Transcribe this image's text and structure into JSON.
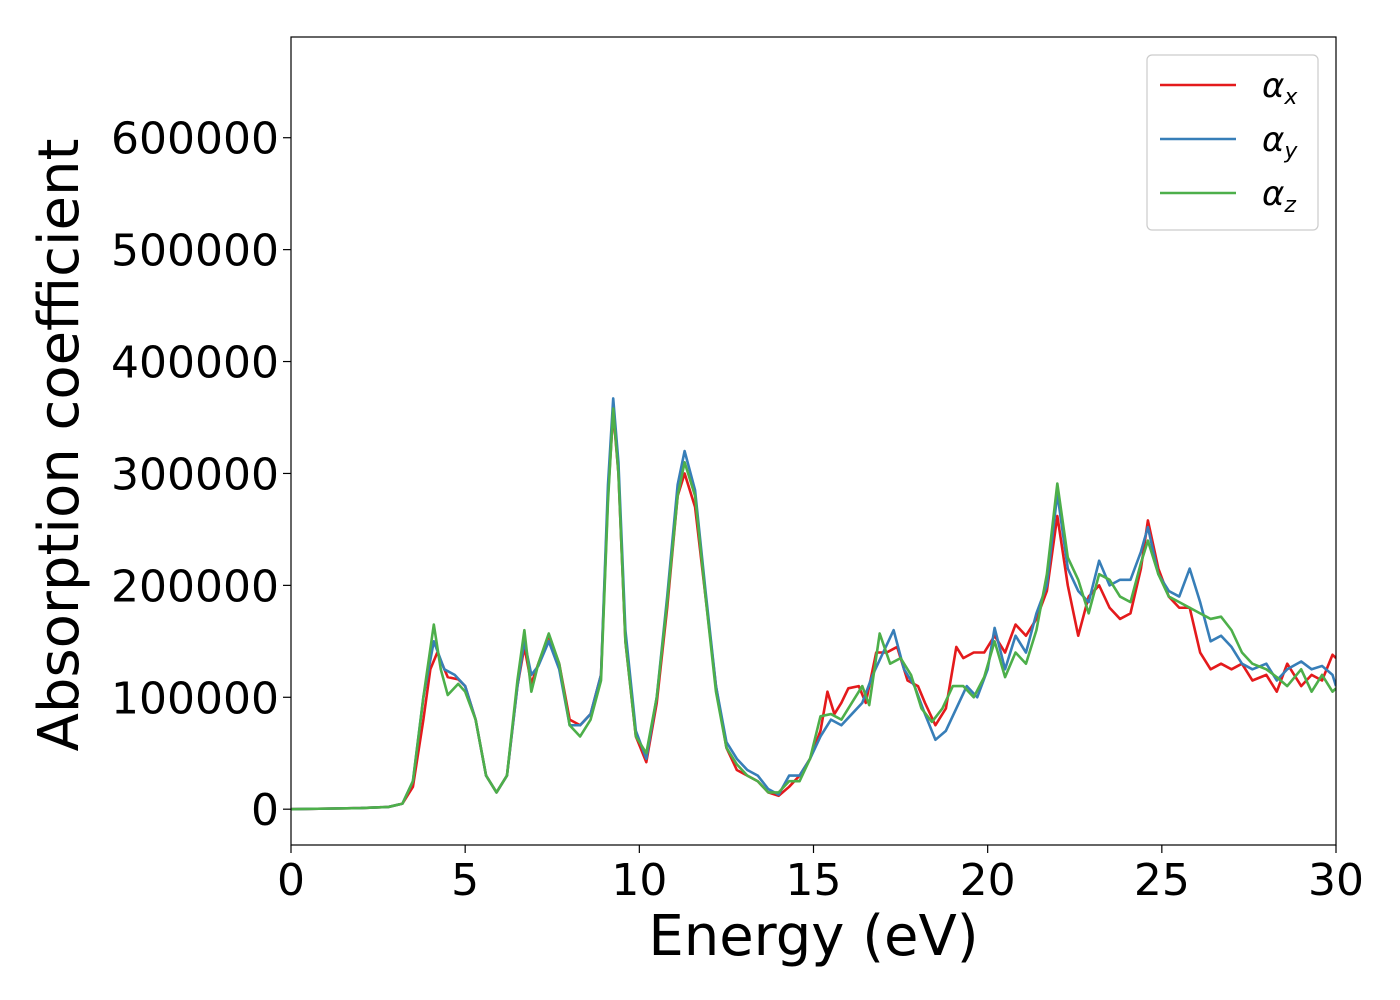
{
  "chart_data": {
    "type": "line",
    "title": "",
    "xlabel": "Energy (eV)",
    "ylabel": "Absorption coefficient",
    "xlim": [
      0,
      30
    ],
    "ylim": [
      -32000,
      690000
    ],
    "xticks": [
      0,
      5,
      10,
      15,
      20,
      25,
      30
    ],
    "yticks": [
      0,
      100000,
      200000,
      300000,
      400000,
      500000,
      600000
    ],
    "grid": false,
    "legend_position": "top-right",
    "series": [
      {
        "name": "αx",
        "legend_base": "α",
        "legend_sub": "x",
        "color": "#e41a1c",
        "points": [
          [
            0,
            0
          ],
          [
            1,
            500
          ],
          [
            2,
            1000
          ],
          [
            2.8,
            2000
          ],
          [
            3.2,
            5000
          ],
          [
            3.5,
            20000
          ],
          [
            3.8,
            80000
          ],
          [
            4.0,
            125000
          ],
          [
            4.2,
            140000
          ],
          [
            4.5,
            118000
          ],
          [
            4.8,
            116000
          ],
          [
            5.0,
            110000
          ],
          [
            5.3,
            80000
          ],
          [
            5.6,
            30000
          ],
          [
            5.9,
            15000
          ],
          [
            6.2,
            30000
          ],
          [
            6.5,
            110000
          ],
          [
            6.7,
            145000
          ],
          [
            6.9,
            112000
          ],
          [
            7.1,
            130000
          ],
          [
            7.4,
            155000
          ],
          [
            7.7,
            130000
          ],
          [
            8.0,
            80000
          ],
          [
            8.3,
            75000
          ],
          [
            8.6,
            85000
          ],
          [
            8.9,
            120000
          ],
          [
            9.1,
            280000
          ],
          [
            9.25,
            355000
          ],
          [
            9.4,
            300000
          ],
          [
            9.6,
            150000
          ],
          [
            9.9,
            65000
          ],
          [
            10.2,
            42000
          ],
          [
            10.5,
            95000
          ],
          [
            10.8,
            180000
          ],
          [
            11.1,
            280000
          ],
          [
            11.3,
            300000
          ],
          [
            11.6,
            270000
          ],
          [
            11.9,
            190000
          ],
          [
            12.2,
            110000
          ],
          [
            12.5,
            55000
          ],
          [
            12.8,
            35000
          ],
          [
            13.1,
            30000
          ],
          [
            13.4,
            25000
          ],
          [
            13.7,
            15000
          ],
          [
            14.0,
            12000
          ],
          [
            14.3,
            20000
          ],
          [
            14.6,
            30000
          ],
          [
            14.9,
            45000
          ],
          [
            15.2,
            70000
          ],
          [
            15.4,
            105000
          ],
          [
            15.6,
            85000
          ],
          [
            15.8,
            95000
          ],
          [
            16.0,
            108000
          ],
          [
            16.3,
            110000
          ],
          [
            16.5,
            95000
          ],
          [
            16.8,
            140000
          ],
          [
            17.1,
            140000
          ],
          [
            17.4,
            145000
          ],
          [
            17.7,
            115000
          ],
          [
            18.0,
            110000
          ],
          [
            18.2,
            95000
          ],
          [
            18.5,
            75000
          ],
          [
            18.8,
            90000
          ],
          [
            19.1,
            145000
          ],
          [
            19.3,
            135000
          ],
          [
            19.6,
            140000
          ],
          [
            19.9,
            140000
          ],
          [
            20.2,
            155000
          ],
          [
            20.5,
            140000
          ],
          [
            20.8,
            165000
          ],
          [
            21.1,
            155000
          ],
          [
            21.4,
            170000
          ],
          [
            21.7,
            195000
          ],
          [
            22.0,
            262000
          ],
          [
            22.3,
            200000
          ],
          [
            22.6,
            155000
          ],
          [
            22.9,
            190000
          ],
          [
            23.2,
            200000
          ],
          [
            23.5,
            180000
          ],
          [
            23.8,
            170000
          ],
          [
            24.1,
            175000
          ],
          [
            24.4,
            215000
          ],
          [
            24.6,
            258000
          ],
          [
            24.9,
            215000
          ],
          [
            25.2,
            190000
          ],
          [
            25.5,
            180000
          ],
          [
            25.8,
            180000
          ],
          [
            26.1,
            140000
          ],
          [
            26.4,
            125000
          ],
          [
            26.7,
            130000
          ],
          [
            27.0,
            125000
          ],
          [
            27.3,
            130000
          ],
          [
            27.6,
            115000
          ],
          [
            28.0,
            120000
          ],
          [
            28.3,
            105000
          ],
          [
            28.6,
            130000
          ],
          [
            29.0,
            110000
          ],
          [
            29.3,
            120000
          ],
          [
            29.6,
            115000
          ],
          [
            29.9,
            138000
          ],
          [
            30.0,
            135000
          ]
        ]
      },
      {
        "name": "αy",
        "legend_base": "α",
        "legend_sub": "y",
        "color": "#377eb8",
        "points": [
          [
            0,
            0
          ],
          [
            1,
            500
          ],
          [
            2,
            1000
          ],
          [
            2.8,
            2000
          ],
          [
            3.2,
            5000
          ],
          [
            3.5,
            25000
          ],
          [
            3.8,
            100000
          ],
          [
            4.1,
            150000
          ],
          [
            4.4,
            125000
          ],
          [
            4.7,
            120000
          ],
          [
            5.0,
            110000
          ],
          [
            5.3,
            80000
          ],
          [
            5.6,
            30000
          ],
          [
            5.9,
            15000
          ],
          [
            6.2,
            30000
          ],
          [
            6.5,
            110000
          ],
          [
            6.7,
            150000
          ],
          [
            6.9,
            120000
          ],
          [
            7.1,
            128000
          ],
          [
            7.4,
            150000
          ],
          [
            7.7,
            125000
          ],
          [
            8.0,
            75000
          ],
          [
            8.3,
            75000
          ],
          [
            8.6,
            85000
          ],
          [
            8.9,
            120000
          ],
          [
            9.1,
            290000
          ],
          [
            9.25,
            367000
          ],
          [
            9.4,
            310000
          ],
          [
            9.6,
            160000
          ],
          [
            9.9,
            70000
          ],
          [
            10.2,
            45000
          ],
          [
            10.5,
            100000
          ],
          [
            10.8,
            190000
          ],
          [
            11.1,
            290000
          ],
          [
            11.3,
            320000
          ],
          [
            11.6,
            285000
          ],
          [
            11.9,
            195000
          ],
          [
            12.2,
            110000
          ],
          [
            12.5,
            60000
          ],
          [
            12.8,
            45000
          ],
          [
            13.1,
            35000
          ],
          [
            13.4,
            30000
          ],
          [
            13.7,
            18000
          ],
          [
            14.0,
            13000
          ],
          [
            14.3,
            30000
          ],
          [
            14.6,
            30000
          ],
          [
            14.9,
            45000
          ],
          [
            15.2,
            65000
          ],
          [
            15.5,
            80000
          ],
          [
            15.8,
            75000
          ],
          [
            16.1,
            85000
          ],
          [
            16.4,
            95000
          ],
          [
            16.7,
            120000
          ],
          [
            17.0,
            140000
          ],
          [
            17.3,
            160000
          ],
          [
            17.6,
            125000
          ],
          [
            17.9,
            110000
          ],
          [
            18.2,
            85000
          ],
          [
            18.5,
            62000
          ],
          [
            18.8,
            70000
          ],
          [
            19.1,
            90000
          ],
          [
            19.4,
            110000
          ],
          [
            19.7,
            100000
          ],
          [
            20.0,
            125000
          ],
          [
            20.2,
            162000
          ],
          [
            20.5,
            125000
          ],
          [
            20.8,
            155000
          ],
          [
            21.1,
            140000
          ],
          [
            21.4,
            175000
          ],
          [
            21.7,
            200000
          ],
          [
            22.0,
            282000
          ],
          [
            22.3,
            215000
          ],
          [
            22.6,
            195000
          ],
          [
            22.9,
            185000
          ],
          [
            23.2,
            222000
          ],
          [
            23.5,
            200000
          ],
          [
            23.8,
            205000
          ],
          [
            24.1,
            205000
          ],
          [
            24.4,
            230000
          ],
          [
            24.6,
            252000
          ],
          [
            24.9,
            210000
          ],
          [
            25.2,
            195000
          ],
          [
            25.5,
            190000
          ],
          [
            25.8,
            215000
          ],
          [
            26.1,
            185000
          ],
          [
            26.4,
            150000
          ],
          [
            26.7,
            155000
          ],
          [
            27.0,
            145000
          ],
          [
            27.3,
            130000
          ],
          [
            27.6,
            125000
          ],
          [
            28.0,
            130000
          ],
          [
            28.3,
            115000
          ],
          [
            28.6,
            125000
          ],
          [
            29.0,
            132000
          ],
          [
            29.3,
            125000
          ],
          [
            29.6,
            128000
          ],
          [
            29.9,
            120000
          ],
          [
            30.0,
            110000
          ]
        ]
      },
      {
        "name": "αz",
        "legend_base": "α",
        "legend_sub": "z",
        "color": "#4daf4a",
        "points": [
          [
            0,
            0
          ],
          [
            1,
            500
          ],
          [
            2,
            1000
          ],
          [
            2.8,
            2000
          ],
          [
            3.2,
            5000
          ],
          [
            3.5,
            25000
          ],
          [
            3.8,
            100000
          ],
          [
            4.1,
            165000
          ],
          [
            4.3,
            125000
          ],
          [
            4.5,
            102000
          ],
          [
            4.8,
            112000
          ],
          [
            5.0,
            105000
          ],
          [
            5.3,
            80000
          ],
          [
            5.6,
            30000
          ],
          [
            5.9,
            15000
          ],
          [
            6.2,
            30000
          ],
          [
            6.5,
            115000
          ],
          [
            6.7,
            160000
          ],
          [
            6.9,
            105000
          ],
          [
            7.1,
            130000
          ],
          [
            7.4,
            157000
          ],
          [
            7.7,
            130000
          ],
          [
            8.0,
            75000
          ],
          [
            8.3,
            65000
          ],
          [
            8.6,
            80000
          ],
          [
            8.9,
            115000
          ],
          [
            9.1,
            275000
          ],
          [
            9.25,
            358000
          ],
          [
            9.4,
            300000
          ],
          [
            9.6,
            150000
          ],
          [
            9.9,
            65000
          ],
          [
            10.2,
            50000
          ],
          [
            10.5,
            100000
          ],
          [
            10.8,
            185000
          ],
          [
            11.1,
            280000
          ],
          [
            11.3,
            310000
          ],
          [
            11.6,
            280000
          ],
          [
            11.9,
            190000
          ],
          [
            12.2,
            105000
          ],
          [
            12.5,
            55000
          ],
          [
            12.8,
            40000
          ],
          [
            13.1,
            30000
          ],
          [
            13.4,
            25000
          ],
          [
            13.7,
            15000
          ],
          [
            14.0,
            15000
          ],
          [
            14.3,
            25000
          ],
          [
            14.6,
            25000
          ],
          [
            14.9,
            45000
          ],
          [
            15.2,
            83000
          ],
          [
            15.5,
            85000
          ],
          [
            15.8,
            80000
          ],
          [
            16.1,
            95000
          ],
          [
            16.4,
            110000
          ],
          [
            16.6,
            93000
          ],
          [
            16.9,
            157000
          ],
          [
            17.2,
            130000
          ],
          [
            17.5,
            135000
          ],
          [
            17.8,
            120000
          ],
          [
            18.1,
            90000
          ],
          [
            18.4,
            78000
          ],
          [
            18.7,
            90000
          ],
          [
            19.0,
            110000
          ],
          [
            19.3,
            110000
          ],
          [
            19.6,
            100000
          ],
          [
            19.9,
            118000
          ],
          [
            20.2,
            150000
          ],
          [
            20.5,
            118000
          ],
          [
            20.8,
            140000
          ],
          [
            21.1,
            130000
          ],
          [
            21.4,
            160000
          ],
          [
            21.7,
            210000
          ],
          [
            22.0,
            291000
          ],
          [
            22.3,
            225000
          ],
          [
            22.6,
            205000
          ],
          [
            22.9,
            175000
          ],
          [
            23.2,
            210000
          ],
          [
            23.5,
            205000
          ],
          [
            23.8,
            190000
          ],
          [
            24.1,
            185000
          ],
          [
            24.4,
            220000
          ],
          [
            24.6,
            240000
          ],
          [
            24.9,
            210000
          ],
          [
            25.2,
            190000
          ],
          [
            25.5,
            185000
          ],
          [
            25.8,
            180000
          ],
          [
            26.1,
            175000
          ],
          [
            26.4,
            170000
          ],
          [
            26.7,
            172000
          ],
          [
            27.0,
            160000
          ],
          [
            27.3,
            140000
          ],
          [
            27.6,
            130000
          ],
          [
            28.0,
            125000
          ],
          [
            28.3,
            118000
          ],
          [
            28.6,
            110000
          ],
          [
            29.0,
            125000
          ],
          [
            29.3,
            105000
          ],
          [
            29.6,
            120000
          ],
          [
            29.9,
            105000
          ],
          [
            30.0,
            108000
          ]
        ]
      }
    ]
  }
}
